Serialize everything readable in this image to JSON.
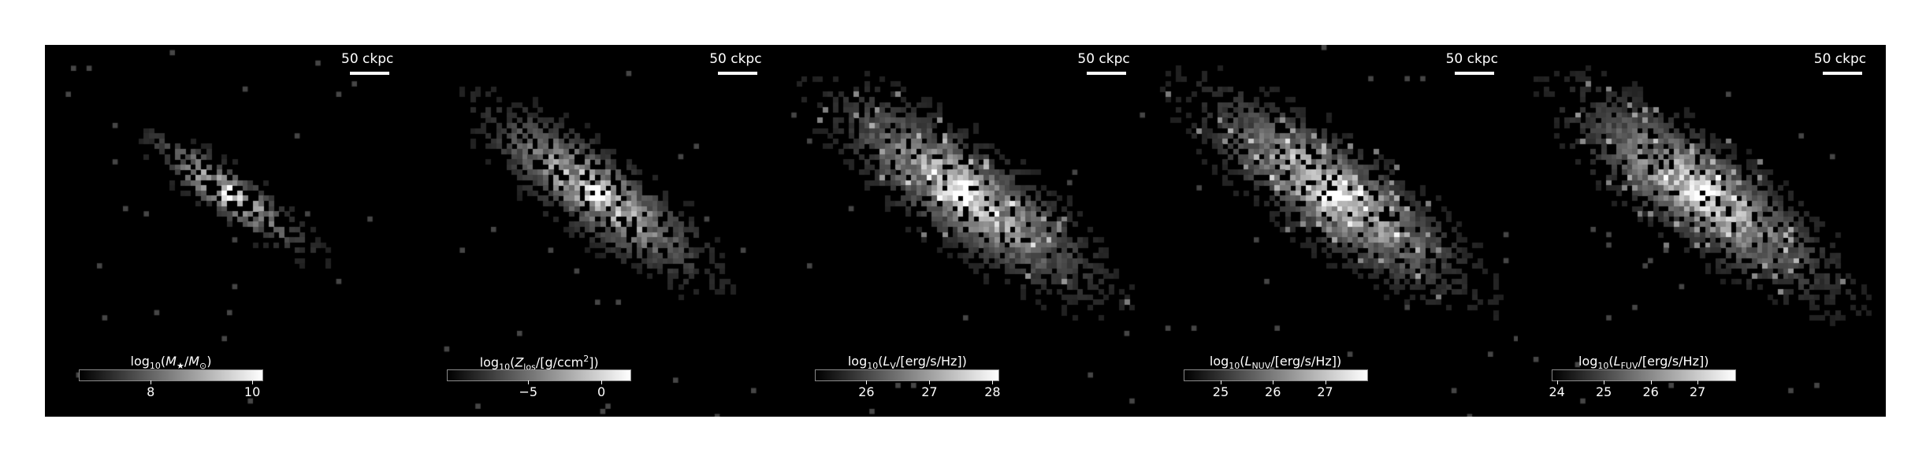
{
  "figure": {
    "background": "#000000",
    "panels": [
      {
        "id": "stellar-mass",
        "scalebar": "50 ckpc",
        "colorbar": {
          "label_parts": [
            "log",
            "10",
            "(",
            "M",
            "★",
            "/",
            "M",
            "⊙",
            ")"
          ],
          "vmin": 6.6,
          "vmax": 10.2,
          "ticks": [
            {
              "value": 8,
              "label": "8"
            },
            {
              "value": 10,
              "label": "10"
            }
          ]
        },
        "map": {
          "peak": "bright-core",
          "spread": "compact",
          "tilt": "nw-se"
        }
      },
      {
        "id": "metal-column",
        "scalebar": "50 ckpc",
        "colorbar": {
          "label_parts": [
            "log",
            "10",
            "(",
            "Z",
            "los",
            "/[g/ccm",
            "2",
            "])"
          ],
          "vmin": -10.5,
          "vmax": 2.0,
          "ticks": [
            {
              "value": -5,
              "label": "−5"
            },
            {
              "value": 0,
              "label": "0"
            }
          ]
        },
        "map": {
          "peak": "bright-core",
          "spread": "medium",
          "tilt": "nw-se"
        }
      },
      {
        "id": "v-band",
        "scalebar": "50 ckpc",
        "colorbar": {
          "label_parts": [
            "log",
            "10",
            "(",
            "L",
            "V",
            "/[erg/s/Hz])"
          ],
          "vmin": 25.2,
          "vmax": 28.1,
          "ticks": [
            {
              "value": 26,
              "label": "26"
            },
            {
              "value": 27,
              "label": "27"
            },
            {
              "value": 28,
              "label": "28"
            }
          ]
        },
        "map": {
          "peak": "diffuse-core",
          "spread": "wide",
          "tilt": "nw-se"
        }
      },
      {
        "id": "nuv-band",
        "scalebar": "50 ckpc",
        "colorbar": {
          "label_parts": [
            "log",
            "10",
            "(",
            "L",
            "NUV",
            "/[erg/s/Hz])"
          ],
          "vmin": 24.3,
          "vmax": 27.8,
          "ticks": [
            {
              "value": 25,
              "label": "25"
            },
            {
              "value": 26,
              "label": "26"
            },
            {
              "value": 27,
              "label": "27"
            }
          ]
        },
        "map": {
          "peak": "diffuse-core",
          "spread": "wide",
          "tilt": "nw-se"
        }
      },
      {
        "id": "fuv-band",
        "scalebar": "50 ckpc",
        "colorbar": {
          "label_parts": [
            "log",
            "10",
            "(",
            "L",
            "FUV",
            "/[erg/s/Hz])"
          ],
          "vmin": 23.9,
          "vmax": 27.8,
          "ticks": [
            {
              "value": 24,
              "label": "24"
            },
            {
              "value": 25,
              "label": "25"
            },
            {
              "value": 26,
              "label": "26"
            },
            {
              "value": 27,
              "label": "27"
            }
          ]
        },
        "map": {
          "peak": "diffuse-core",
          "spread": "wide",
          "tilt": "nw-se"
        }
      }
    ]
  }
}
